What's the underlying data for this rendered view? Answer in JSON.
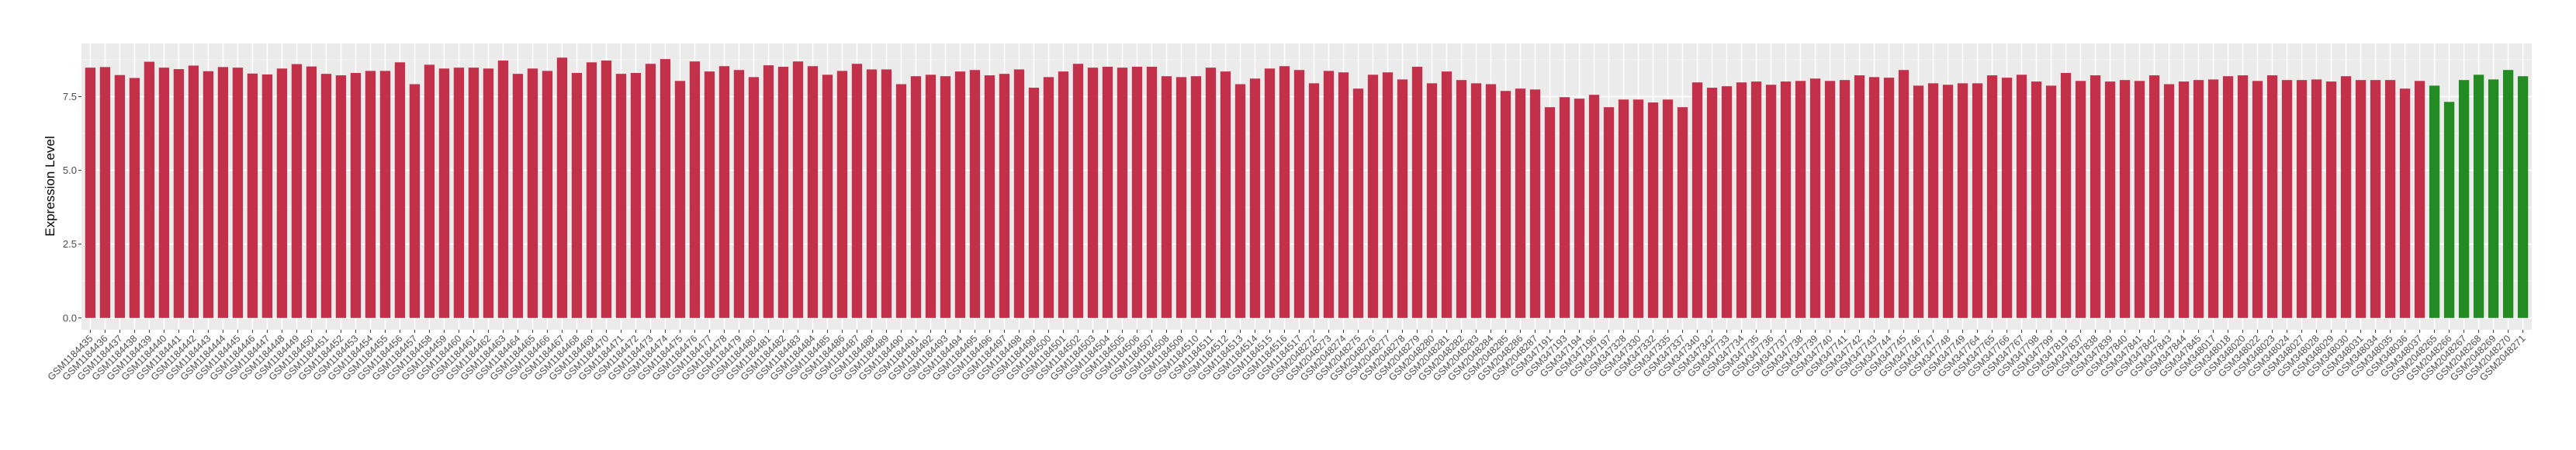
{
  "chart_data": {
    "type": "bar",
    "title": "",
    "xlabel": "",
    "ylabel": "Expression Level",
    "ylim": [
      -0.4,
      9.3
    ],
    "yticks": [
      "0.0",
      "2.5",
      "5.0",
      "7.5"
    ],
    "ytick_values": [
      0,
      2.5,
      5,
      7.5
    ],
    "grid": true,
    "legend": "none",
    "colors": {
      "group1": "#c3304a",
      "group2": "#228b22",
      "panel": "#ebebeb",
      "grid": "#ffffff"
    },
    "categories": [
      "GSM1184435",
      "GSM1184436",
      "GSM1184437",
      "GSM1184438",
      "GSM1184439",
      "GSM1184440",
      "GSM1184441",
      "GSM1184442",
      "GSM1184443",
      "GSM1184444",
      "GSM1184445",
      "GSM1184446",
      "GSM1184447",
      "GSM1184448",
      "GSM1184449",
      "GSM1184450",
      "GSM1184451",
      "GSM1184452",
      "GSM1184453",
      "GSM1184454",
      "GSM1184455",
      "GSM1184456",
      "GSM1184457",
      "GSM1184458",
      "GSM1184459",
      "GSM1184460",
      "GSM1184461",
      "GSM1184462",
      "GSM1184463",
      "GSM1184464",
      "GSM1184465",
      "GSM1184466",
      "GSM1184467",
      "GSM1184468",
      "GSM1184469",
      "GSM1184470",
      "GSM1184471",
      "GSM1184472",
      "GSM1184473",
      "GSM1184474",
      "GSM1184475",
      "GSM1184476",
      "GSM1184477",
      "GSM1184478",
      "GSM1184479",
      "GSM1184480",
      "GSM1184481",
      "GSM1184482",
      "GSM1184483",
      "GSM1184484",
      "GSM1184485",
      "GSM1184486",
      "GSM1184487",
      "GSM1184488",
      "GSM1184489",
      "GSM1184490",
      "GSM1184491",
      "GSM1184492",
      "GSM1184493",
      "GSM1184494",
      "GSM1184495",
      "GSM1184496",
      "GSM1184497",
      "GSM1184498",
      "GSM1184499",
      "GSM1184500",
      "GSM1184501",
      "GSM1184502",
      "GSM1184503",
      "GSM1184504",
      "GSM1184505",
      "GSM1184506",
      "GSM1184507",
      "GSM1184508",
      "GSM1184509",
      "GSM1184510",
      "GSM1184511",
      "GSM1184512",
      "GSM1184513",
      "GSM1184514",
      "GSM1184515",
      "GSM1184516",
      "GSM1184517",
      "GSM2048272",
      "GSM2048273",
      "GSM2048274",
      "GSM2048275",
      "GSM2048276",
      "GSM2048277",
      "GSM2048278",
      "GSM2048279",
      "GSM2048280",
      "GSM2048281",
      "GSM2048282",
      "GSM2048283",
      "GSM2048284",
      "GSM2048285",
      "GSM2048286",
      "GSM2048287",
      "GSM347191",
      "GSM347193",
      "GSM347194",
      "GSM347196",
      "GSM347197",
      "GSM347328",
      "GSM347330",
      "GSM347332",
      "GSM347335",
      "GSM347337",
      "GSM347340",
      "GSM347342",
      "GSM347733",
      "GSM347734",
      "GSM347735",
      "GSM347736",
      "GSM347737",
      "GSM347738",
      "GSM347739",
      "GSM347740",
      "GSM347741",
      "GSM347742",
      "GSM347743",
      "GSM347744",
      "GSM347745",
      "GSM347746",
      "GSM347747",
      "GSM347748",
      "GSM347749",
      "GSM347764",
      "GSM347765",
      "GSM347766",
      "GSM347767",
      "GSM347798",
      "GSM347799",
      "GSM347819",
      "GSM347837",
      "GSM347838",
      "GSM347839",
      "GSM347840",
      "GSM347841",
      "GSM347842",
      "GSM347843",
      "GSM347844",
      "GSM347845",
      "GSM348017",
      "GSM348018",
      "GSM348020",
      "GSM348022",
      "GSM348023",
      "GSM348024",
      "GSM348027",
      "GSM348028",
      "GSM348029",
      "GSM348030",
      "GSM348031",
      "GSM348034",
      "GSM348035",
      "GSM348036",
      "GSM348037",
      "GSM2048265",
      "GSM2048266",
      "GSM2048267",
      "GSM2048268",
      "GSM2048269",
      "GSM2048270",
      "GSM2048271"
    ],
    "values": [
      8.48,
      8.5,
      8.23,
      8.13,
      8.68,
      8.48,
      8.43,
      8.55,
      8.36,
      8.5,
      8.48,
      8.28,
      8.25,
      8.45,
      8.6,
      8.52,
      8.27,
      8.22,
      8.3,
      8.37,
      8.37,
      8.66,
      7.92,
      8.58,
      8.45,
      8.48,
      8.48,
      8.45,
      8.72,
      8.27,
      8.45,
      8.37,
      8.82,
      8.3,
      8.66,
      8.72,
      8.27,
      8.3,
      8.61,
      8.77,
      8.03,
      8.69,
      8.35,
      8.53,
      8.4,
      8.16,
      8.56,
      8.51,
      8.69,
      8.53,
      8.24,
      8.37,
      8.61,
      8.42,
      8.42,
      7.92,
      8.19,
      8.24,
      8.19,
      8.35,
      8.4,
      8.22,
      8.27,
      8.42,
      7.8,
      8.16,
      8.35,
      8.61,
      8.48,
      8.51,
      8.48,
      8.51,
      8.51,
      8.19,
      8.16,
      8.19,
      8.48,
      8.35,
      7.92,
      8.11,
      8.45,
      8.53,
      8.4,
      7.95,
      8.37,
      8.32,
      7.77,
      8.24,
      8.32,
      8.08,
      8.51,
      7.95,
      8.35,
      8.06,
      7.95,
      7.92,
      7.69,
      7.77,
      7.74,
      7.14,
      7.48,
      7.43,
      7.56,
      7.14,
      7.4,
      7.4,
      7.3,
      7.4,
      7.14,
      7.98,
      7.8,
      7.85,
      7.98,
      8.01,
      7.9,
      8.01,
      8.03,
      8.11,
      8.03,
      8.06,
      8.22,
      8.16,
      8.14,
      8.4,
      7.87,
      7.95,
      7.9,
      7.95,
      7.95,
      8.22,
      8.14,
      8.24,
      8.01,
      7.87,
      8.3,
      8.03,
      8.22,
      8.01,
      8.06,
      8.03,
      8.22,
      7.92,
      8.01,
      8.06,
      8.08,
      8.19,
      8.22,
      8.03,
      8.22,
      8.06,
      8.06,
      8.08,
      8.01,
      8.19,
      8.06,
      8.06,
      8.06,
      7.77,
      8.03,
      7.87,
      7.32,
      8.06,
      8.24,
      8.08,
      8.4,
      8.19
    ],
    "groups_first_green_index": 159
  }
}
